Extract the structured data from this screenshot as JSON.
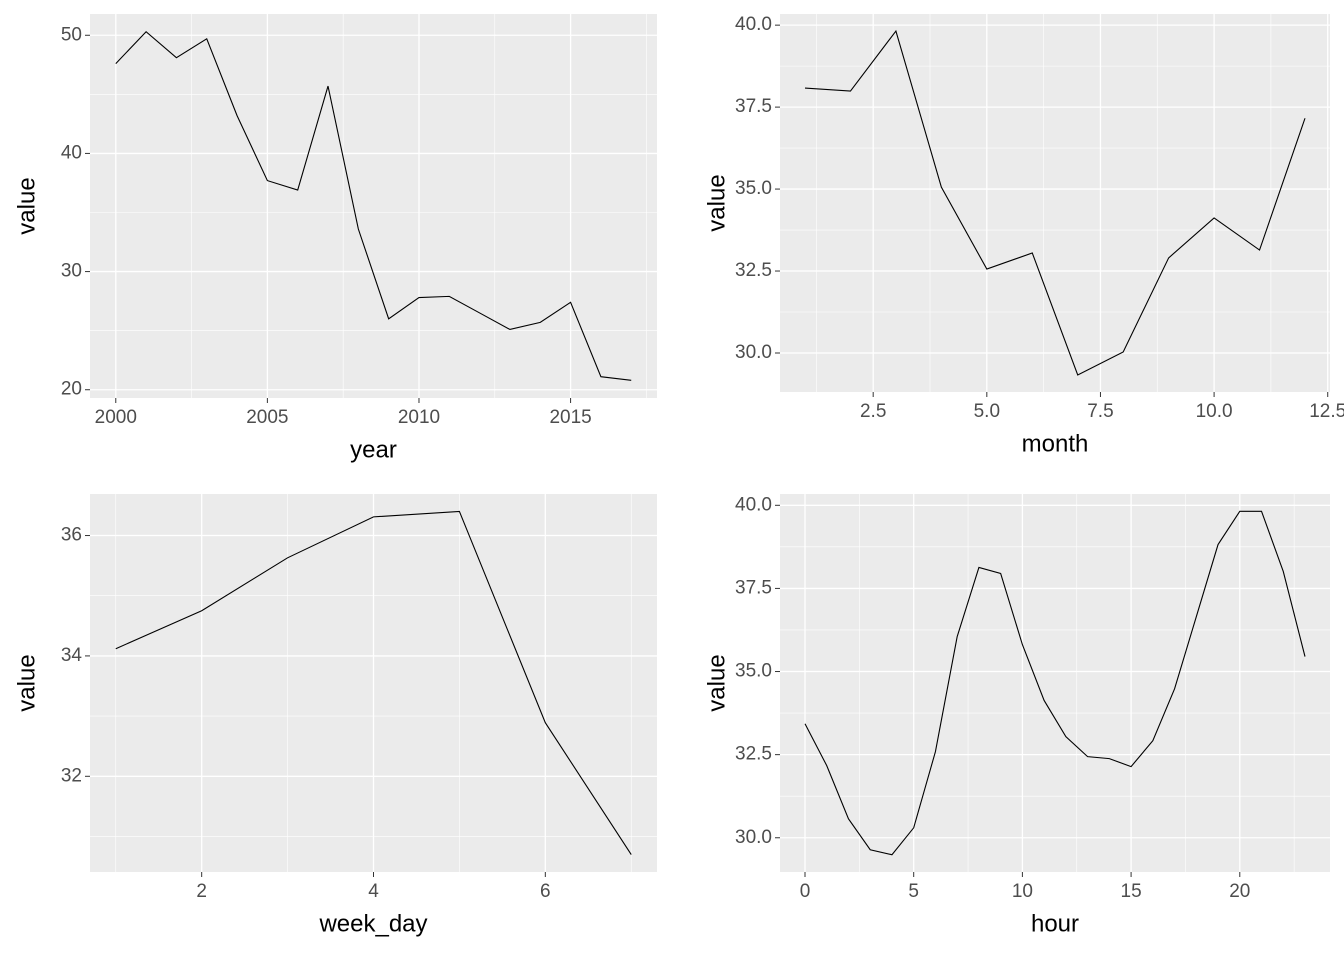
{
  "chart_data": [
    {
      "type": "line",
      "x_label": "year",
      "y_label": "value",
      "x": [
        2000,
        2001,
        2002,
        2003,
        2004,
        2005,
        2006,
        2007,
        2008,
        2009,
        2010,
        2011,
        2012,
        2013,
        2014,
        2015,
        2016,
        2017
      ],
      "values": [
        47.6,
        50.3,
        48.1,
        49.7,
        43.2,
        37.7,
        36.9,
        45.7,
        33.6,
        26.0,
        27.8,
        27.9,
        26.5,
        25.1,
        25.7,
        27.4,
        21.1,
        20.8
      ],
      "color": "#000000",
      "xlim": [
        1999.15,
        2017.85
      ],
      "ylim": [
        19.3,
        51.8
      ],
      "xticks": [
        2000,
        2005,
        2010,
        2015
      ],
      "yticks": [
        20,
        30,
        40,
        50
      ],
      "grid": true
    },
    {
      "type": "line",
      "x_label": "month",
      "y_label": "value",
      "x": [
        1,
        2,
        3,
        4,
        5,
        6,
        7,
        8,
        9,
        10,
        11,
        12
      ],
      "values": [
        38.08,
        37.99,
        39.82,
        35.06,
        32.56,
        33.05,
        29.33,
        30.03,
        32.9,
        34.12,
        33.14,
        37.16
      ],
      "color": "#000000",
      "xlim": [
        0.45,
        12.55
      ],
      "ylim": [
        28.81,
        40.34
      ],
      "xticks": [
        2.5,
        {
          "value": 5,
          "label": "5.0"
        },
        7.5,
        {
          "value": 10,
          "label": "10.0"
        },
        12.5
      ],
      "yticks": [
        {
          "value": 30,
          "label": "30.0"
        },
        32.5,
        {
          "value": 35,
          "label": "35.0"
        },
        37.5,
        {
          "value": 40,
          "label": "40.0"
        }
      ],
      "grid": true
    },
    {
      "type": "line",
      "x_label": "week_day",
      "y_label": "value",
      "x": [
        1,
        2,
        3,
        4,
        5,
        6,
        7
      ],
      "values": [
        34.12,
        34.75,
        35.63,
        36.31,
        36.4,
        32.89,
        30.7
      ],
      "color": "#000000",
      "xlim": [
        0.7,
        7.3
      ],
      "ylim": [
        30.41,
        36.69
      ],
      "xticks": [
        2,
        4,
        6
      ],
      "yticks": [
        32,
        34,
        36
      ],
      "grid": true
    },
    {
      "type": "line",
      "x_label": "hour",
      "y_label": "value",
      "x": [
        0,
        1,
        2,
        3,
        4,
        5,
        6,
        7,
        8,
        9,
        10,
        11,
        12,
        13,
        14,
        15,
        16,
        17,
        18,
        19,
        20,
        21,
        22,
        23
      ],
      "values": [
        33.43,
        32.17,
        30.57,
        29.64,
        29.49,
        30.3,
        32.59,
        36.05,
        38.13,
        37.95,
        35.81,
        34.13,
        33.04,
        32.44,
        32.38,
        32.14,
        32.92,
        34.48,
        36.65,
        38.82,
        39.82,
        39.82,
        38.01,
        35.45
      ],
      "color": "#000000",
      "xlim": [
        -1.15,
        24.15
      ],
      "ylim": [
        28.97,
        40.34
      ],
      "xticks": [
        0,
        5,
        10,
        15,
        20
      ],
      "yticks": [
        {
          "value": 30,
          "label": "30.0"
        },
        32.5,
        {
          "value": 35,
          "label": "35.0"
        },
        37.5,
        {
          "value": 40,
          "label": "40.0"
        }
      ],
      "grid": true
    }
  ]
}
